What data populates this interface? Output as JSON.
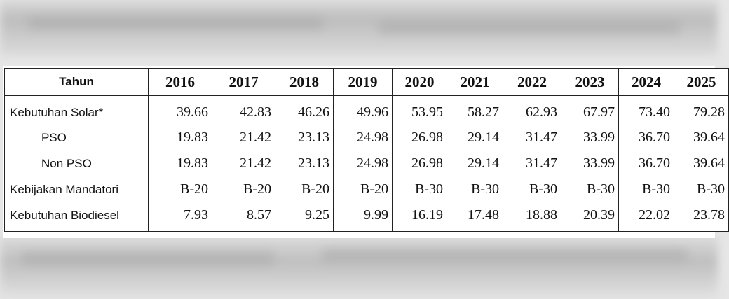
{
  "table": {
    "header": {
      "label": "Tahun",
      "years": [
        "2016",
        "2017",
        "2018",
        "2019",
        "2020",
        "2021",
        "2022",
        "2023",
        "2024",
        "2025"
      ]
    },
    "rows": [
      {
        "label": "Kebutuhan Solar*",
        "values": [
          "39.66",
          "42.83",
          "46.26",
          "49.96",
          "53.95",
          "58.27",
          "62.93",
          "67.97",
          "73.40",
          "79.28"
        ]
      },
      {
        "label": "PSO",
        "values": [
          "19.83",
          "21.42",
          "23.13",
          "24.98",
          "26.98",
          "29.14",
          "31.47",
          "33.99",
          "36.70",
          "39.64"
        ]
      },
      {
        "label": "Non PSO",
        "values": [
          "19.83",
          "21.42",
          "23.13",
          "24.98",
          "26.98",
          "29.14",
          "31.47",
          "33.99",
          "36.70",
          "39.64"
        ]
      },
      {
        "label": "Kebijakan Mandatori",
        "values": [
          "B-20",
          "B-20",
          "B-20",
          "B-20",
          "B-30",
          "B-30",
          "B-30",
          "B-30",
          "B-30",
          "B-30"
        ]
      },
      {
        "label": "Kebutuhan Biodiesel",
        "values": [
          "7.93",
          "8.57",
          "9.25",
          "9.99",
          "16.19",
          "17.48",
          "18.88",
          "20.39",
          "22.02",
          "23.78"
        ]
      }
    ]
  }
}
